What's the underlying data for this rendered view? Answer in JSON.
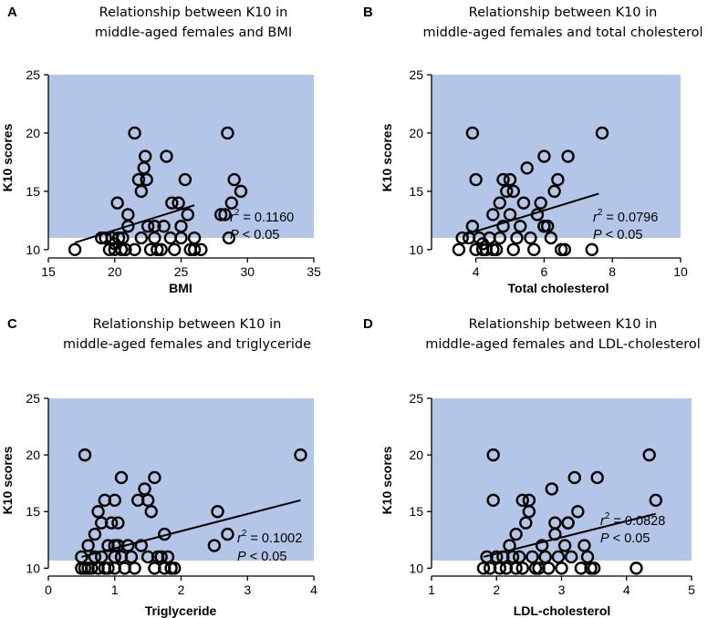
{
  "chart_data": [
    {
      "panel": "A",
      "type": "scatter",
      "title": [
        "Relationship between K10 in",
        "middle-aged females and BMI"
      ],
      "xlabel": "BMI",
      "ylabel": "K10 scores",
      "xlim": [
        15,
        35
      ],
      "ylim": [
        8.5,
        25
      ],
      "xticks": [
        15,
        20,
        25,
        30,
        35
      ],
      "yticks": [
        10,
        15,
        20,
        25
      ],
      "stat_r2_label": "r",
      "stat_r2_sup": "2",
      "stat_r2_value": " = 0.1160",
      "stat_p_label": "P",
      "stat_p_value": " < 0.05",
      "regression": {
        "x": [
          17,
          26
        ],
        "y": [
          10.6,
          13.8
        ]
      },
      "points": [
        [
          17,
          10
        ],
        [
          19,
          11
        ],
        [
          19.3,
          11
        ],
        [
          19.6,
          10
        ],
        [
          19.8,
          11
        ],
        [
          20,
          10
        ],
        [
          20,
          10.5
        ],
        [
          20.2,
          14
        ],
        [
          20.3,
          11
        ],
        [
          20.5,
          10
        ],
        [
          20.6,
          11
        ],
        [
          20.8,
          10
        ],
        [
          21,
          13
        ],
        [
          21,
          12
        ],
        [
          21.5,
          20
        ],
        [
          21.5,
          10
        ],
        [
          21.8,
          16
        ],
        [
          22,
          11
        ],
        [
          22,
          15
        ],
        [
          22.2,
          17
        ],
        [
          22.3,
          18
        ],
        [
          22.4,
          16
        ],
        [
          22.5,
          12
        ],
        [
          22.7,
          10
        ],
        [
          23,
          12
        ],
        [
          23,
          11
        ],
        [
          23.2,
          10
        ],
        [
          23.5,
          10
        ],
        [
          23.7,
          12
        ],
        [
          23.9,
          18
        ],
        [
          24.2,
          11
        ],
        [
          24.3,
          14
        ],
        [
          24.5,
          10
        ],
        [
          24.8,
          14
        ],
        [
          25,
          12
        ],
        [
          25,
          11
        ],
        [
          25.3,
          16
        ],
        [
          25.5,
          13
        ],
        [
          25.7,
          10
        ],
        [
          26,
          11
        ],
        [
          26,
          10
        ],
        [
          26.5,
          10
        ],
        [
          28,
          13
        ],
        [
          28.3,
          13
        ],
        [
          28.5,
          20
        ],
        [
          28.6,
          11
        ],
        [
          28.8,
          14
        ],
        [
          29,
          16
        ],
        [
          29.5,
          15
        ]
      ]
    },
    {
      "panel": "B",
      "type": "scatter",
      "title": [
        "Relationship between K10 in",
        "middle-aged females and total cholesterol"
      ],
      "xlabel": "Total cholesterol",
      "ylabel": "K10 scores",
      "xlim": [
        2.7,
        10
      ],
      "ylim": [
        8.5,
        25
      ],
      "xticks": [
        4,
        6,
        8,
        10
      ],
      "yticks": [
        10,
        15,
        20,
        25
      ],
      "stat_r2_label": "r",
      "stat_r2_sup": "2",
      "stat_r2_value": " = 0.0796",
      "stat_p_label": "P",
      "stat_p_value": " < 0.05",
      "regression": {
        "x": [
          3.7,
          7.6
        ],
        "y": [
          11.3,
          14.8
        ]
      },
      "points": [
        [
          3.5,
          10
        ],
        [
          3.6,
          11
        ],
        [
          3.8,
          11
        ],
        [
          3.9,
          20
        ],
        [
          3.9,
          12
        ],
        [
          4,
          16
        ],
        [
          4,
          10
        ],
        [
          4.1,
          11
        ],
        [
          4.2,
          10
        ],
        [
          4.2,
          10.5
        ],
        [
          4.3,
          10
        ],
        [
          4.4,
          11
        ],
        [
          4.5,
          10
        ],
        [
          4.5,
          13
        ],
        [
          4.6,
          10
        ],
        [
          4.7,
          14
        ],
        [
          4.7,
          11
        ],
        [
          4.8,
          16
        ],
        [
          4.8,
          12
        ],
        [
          4.9,
          15
        ],
        [
          5,
          13
        ],
        [
          5,
          16
        ],
        [
          5.1,
          10
        ],
        [
          5.1,
          15
        ],
        [
          5.2,
          11
        ],
        [
          5.3,
          12
        ],
        [
          5.4,
          14
        ],
        [
          5.5,
          17
        ],
        [
          5.6,
          11
        ],
        [
          5.7,
          10
        ],
        [
          5.8,
          13
        ],
        [
          5.9,
          14
        ],
        [
          6,
          12
        ],
        [
          6,
          18
        ],
        [
          6,
          12
        ],
        [
          6.1,
          12
        ],
        [
          6.2,
          11
        ],
        [
          6.3,
          15
        ],
        [
          6.4,
          16
        ],
        [
          6.5,
          10
        ],
        [
          6.6,
          10
        ],
        [
          6.7,
          18
        ],
        [
          7.4,
          10
        ],
        [
          7.7,
          20
        ]
      ]
    },
    {
      "panel": "C",
      "type": "scatter",
      "title": [
        "Relationship between K10 in",
        "middle-aged females and triglyceride"
      ],
      "xlabel": "Triglyceride",
      "ylabel": "K10 scores",
      "xlim": [
        0,
        4
      ],
      "ylim": [
        8.5,
        25
      ],
      "xticks": [
        0,
        1,
        2,
        3,
        4
      ],
      "yticks": [
        10,
        15,
        20,
        25
      ],
      "stat_r2_label": "r",
      "stat_r2_sup": "2",
      "stat_r2_value": " = 0.1002",
      "stat_p_label": "P",
      "stat_p_value": " < 0.05",
      "regression": {
        "x": [
          0.5,
          3.8
        ],
        "y": [
          11,
          16
        ]
      },
      "points": [
        [
          0.5,
          10
        ],
        [
          0.5,
          11
        ],
        [
          0.55,
          20
        ],
        [
          0.55,
          10
        ],
        [
          0.6,
          12
        ],
        [
          0.6,
          10
        ],
        [
          0.65,
          10
        ],
        [
          0.7,
          11
        ],
        [
          0.7,
          13
        ],
        [
          0.75,
          10
        ],
        [
          0.75,
          15
        ],
        [
          0.8,
          11
        ],
        [
          0.8,
          14
        ],
        [
          0.85,
          10
        ],
        [
          0.85,
          16
        ],
        [
          0.9,
          12
        ],
        [
          0.9,
          10
        ],
        [
          0.95,
          14
        ],
        [
          1,
          11
        ],
        [
          1,
          12
        ],
        [
          1,
          10
        ],
        [
          1,
          16
        ],
        [
          1.05,
          12
        ],
        [
          1.05,
          14
        ],
        [
          1.1,
          18
        ],
        [
          1.1,
          11
        ],
        [
          1.15,
          10
        ],
        [
          1.2,
          12
        ],
        [
          1.25,
          11
        ],
        [
          1.3,
          10
        ],
        [
          1.35,
          16
        ],
        [
          1.4,
          12
        ],
        [
          1.45,
          17
        ],
        [
          1.5,
          11
        ],
        [
          1.5,
          16
        ],
        [
          1.55,
          15
        ],
        [
          1.6,
          18
        ],
        [
          1.6,
          10
        ],
        [
          1.65,
          11
        ],
        [
          1.7,
          11
        ],
        [
          1.75,
          13
        ],
        [
          1.75,
          10
        ],
        [
          1.8,
          11
        ],
        [
          1.85,
          10
        ],
        [
          1.9,
          10
        ],
        [
          2.5,
          12
        ],
        [
          2.55,
          15
        ],
        [
          2.7,
          13
        ],
        [
          3.8,
          20
        ]
      ]
    },
    {
      "panel": "D",
      "type": "scatter",
      "title": [
        "Relationship between K10 in",
        "middle-aged females and LDL-cholesterol"
      ],
      "xlabel": "LDL-cholesterol",
      "ylabel": "K10 scores",
      "xlim": [
        1,
        5
      ],
      "ylim": [
        8.5,
        25
      ],
      "xticks": [
        1,
        2,
        3,
        4,
        5
      ],
      "yticks": [
        10,
        15,
        20,
        25
      ],
      "stat_r2_label": "r",
      "stat_r2_sup": "2",
      "stat_r2_value": " = 0.0828",
      "stat_p_label": "P",
      "stat_p_value": " < 0.05",
      "regression": {
        "x": [
          1.8,
          4.45
        ],
        "y": [
          11,
          14.8
        ]
      },
      "points": [
        [
          1.8,
          10
        ],
        [
          1.85,
          11
        ],
        [
          1.9,
          10
        ],
        [
          1.95,
          20
        ],
        [
          1.95,
          16
        ],
        [
          2,
          11
        ],
        [
          2.05,
          10
        ],
        [
          2.1,
          11
        ],
        [
          2.15,
          10
        ],
        [
          2.2,
          12
        ],
        [
          2.25,
          11
        ],
        [
          2.3,
          10
        ],
        [
          2.3,
          13
        ],
        [
          2.35,
          11
        ],
        [
          2.4,
          16
        ],
        [
          2.4,
          10
        ],
        [
          2.45,
          14
        ],
        [
          2.5,
          16
        ],
        [
          2.5,
          15
        ],
        [
          2.55,
          11
        ],
        [
          2.6,
          10
        ],
        [
          2.65,
          10
        ],
        [
          2.7,
          12
        ],
        [
          2.75,
          11
        ],
        [
          2.8,
          10
        ],
        [
          2.85,
          17
        ],
        [
          2.9,
          13
        ],
        [
          2.9,
          14
        ],
        [
          2.95,
          11
        ],
        [
          3,
          10
        ],
        [
          3.05,
          12
        ],
        [
          3.1,
          14
        ],
        [
          3.1,
          14
        ],
        [
          3.15,
          11
        ],
        [
          3.2,
          18
        ],
        [
          3.25,
          15
        ],
        [
          3.3,
          10
        ],
        [
          3.35,
          12
        ],
        [
          3.4,
          11
        ],
        [
          3.45,
          10
        ],
        [
          3.5,
          10
        ],
        [
          3.55,
          18
        ],
        [
          4.15,
          10
        ],
        [
          4.35,
          20
        ],
        [
          4.45,
          16
        ]
      ]
    }
  ]
}
